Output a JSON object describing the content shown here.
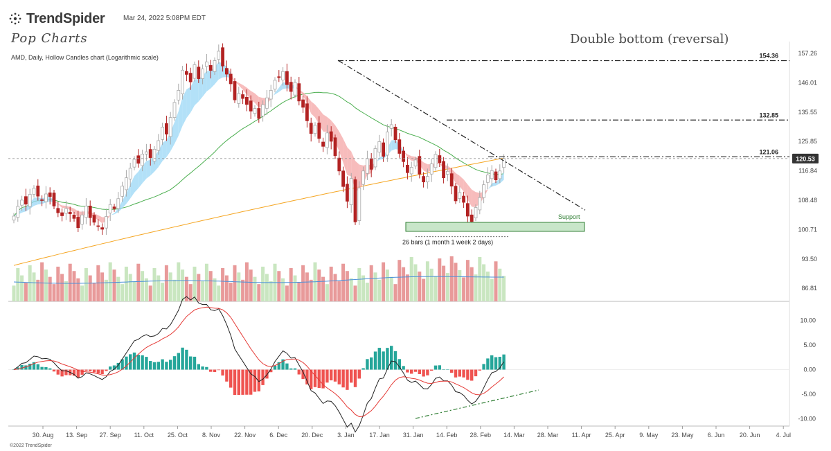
{
  "header": {
    "brand": "TrendSpider",
    "timestamp": "Mar 24, 2022 5:08PM EDT",
    "logo_text": "Pop Charts",
    "subtitle": "AMD, Daily, Hollow Candles chart (Logarithmic scale)",
    "headline": "Double bottom (reversal)",
    "copyright": "©2022 TrendSpider"
  },
  "colors": {
    "up": "#a8a8a8",
    "down": "#b22222",
    "ribbon_up": "#9ad7f5",
    "ribbon_down": "#f4a6a6",
    "ma_green": "#4caf50",
    "ma_orange": "#f5a623",
    "vol_up": "#c9e6c0",
    "vol_down": "#e89a9a",
    "vol_ma": "#4a90d9",
    "hist_up": "#26a69a",
    "hist_down": "#ef5350",
    "macd": "#222222",
    "signal": "#e53935",
    "support_fill": "#c8e6c9",
    "support_stroke": "#2e7d32",
    "divergence": "#2e7d32",
    "price_badge": "#333333"
  },
  "chart_data": {
    "type": "candlestick",
    "price_scale": "log",
    "y_ticks": [
      157.26,
      146.01,
      135.55,
      125.85,
      116.84,
      108.48,
      100.71,
      93.5,
      86.81
    ],
    "x_ticks": [
      "30. Aug",
      "13. Sep",
      "27. Sep",
      "11. Oct",
      "25. Oct",
      "8. Nov",
      "22. Nov",
      "6. Dec",
      "20. Dec",
      "3. Jan",
      "17. Jan",
      "31. Jan",
      "14. Feb",
      "28. Feb",
      "14. Mar",
      "28. Mar",
      "11. Apr",
      "25. Apr",
      "9. May",
      "23. May",
      "6. Jun",
      "20. Jun",
      "4. Jul"
    ],
    "closes": [
      104.2,
      106.8,
      108.5,
      107.4,
      110.1,
      111.8,
      109.6,
      108.4,
      110.2,
      109.5,
      106.9,
      105.1,
      104.3,
      106.2,
      104.8,
      103.6,
      101.2,
      104.5,
      106.9,
      103.8,
      102.6,
      101.5,
      100.8,
      104.1,
      107.3,
      106.2,
      108.9,
      112.4,
      114.8,
      117.6,
      120.3,
      119.1,
      121.9,
      122.6,
      120.8,
      123.4,
      126.1,
      130.5,
      128.2,
      133.7,
      138.9,
      143.2,
      150.7,
      149.1,
      146.3,
      152.8,
      147.5,
      151.2,
      153.9,
      150.6,
      154.4,
      158.1,
      152.3,
      149.2,
      145.6,
      139.8,
      142.1,
      140.3,
      138.2,
      135.9,
      136.8,
      133.4,
      138.1,
      140.5,
      143.2,
      146.9,
      147.9,
      150.2,
      145.3,
      142.8,
      146.1,
      139.4,
      137.2,
      132.6,
      128.4,
      131.1,
      126.8,
      124.3,
      128.6,
      125.9,
      121.4,
      116.8,
      112.3,
      108.2,
      114.6,
      102.7,
      111.9,
      116.8,
      120.5,
      117.3,
      123.6,
      125.8,
      121.2,
      128.9,
      131.3,
      126.4,
      122.1,
      119.6,
      116.3,
      117.9,
      120.1,
      115.9,
      113.6,
      115.2,
      118.9,
      121.8,
      119.3,
      114.8,
      116.7,
      112.4,
      108.3,
      110.6,
      107.9,
      104.2,
      102.8,
      106.5,
      109.2,
      112.8,
      115.6,
      116.9,
      114.2,
      116.8,
      120.53
    ],
    "support_level": 101.5,
    "resistance_levels": [
      154.36,
      132.85,
      121.06
    ],
    "last_price": 120.53,
    "bar_count_label": "26 bars (1 month 1 week 2 days)",
    "support_label": "Support",
    "macd_ticks": [
      10.0,
      5.0,
      0.0,
      -5.0,
      -10.0
    ],
    "macd_ticks_text": [
      "10.00",
      "5.00",
      "0.00",
      "-5.00",
      "-10.00"
    ],
    "y_ticks_text": [
      "157.26",
      "146.01",
      "135.55",
      "125.85",
      "116.84",
      "108.48",
      "100.71",
      "93.50",
      "86.81"
    ],
    "resistance_text": [
      "154.36",
      "132.85",
      "121.06"
    ],
    "last_price_text": "120.53"
  }
}
